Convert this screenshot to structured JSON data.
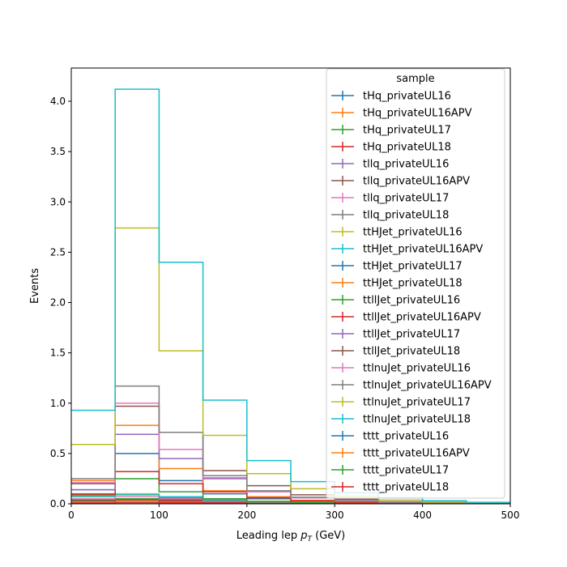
{
  "chart_data": {
    "type": "step histogram",
    "xlabel_main": "Leading lep ",
    "xlabel_var": "p",
    "xlabel_sub": "T",
    "xlabel_unit": " (GeV)",
    "ylabel": "Events",
    "xlim": [
      0,
      500
    ],
    "ylim": [
      0,
      4.33
    ],
    "xticks": [
      0,
      100,
      200,
      300,
      400,
      500
    ],
    "yticks": [
      0.0,
      0.5,
      1.0,
      1.5,
      2.0,
      2.5,
      3.0,
      3.5,
      4.0
    ],
    "bin_edges": [
      0,
      50,
      100,
      150,
      200,
      250,
      300,
      350,
      400,
      450,
      500
    ],
    "legend": {
      "title": "sample",
      "placement": "upper right"
    },
    "series": [
      {
        "name": "tHq_privateUL16",
        "color": "#1f77b4",
        "values": [
          0.02,
          0.03,
          0.02,
          0.01,
          0.005,
          0.003,
          0.002,
          0.001,
          0.001,
          0.0
        ]
      },
      {
        "name": "tHq_privateUL16APV",
        "color": "#ff7f0e",
        "values": [
          0.02,
          0.03,
          0.02,
          0.01,
          0.005,
          0.003,
          0.002,
          0.001,
          0.001,
          0.0
        ]
      },
      {
        "name": "tHq_privateUL17",
        "color": "#2ca02c",
        "values": [
          0.04,
          0.05,
          0.03,
          0.015,
          0.008,
          0.004,
          0.002,
          0.001,
          0.001,
          0.0
        ]
      },
      {
        "name": "tHq_privateUL18",
        "color": "#d62728",
        "values": [
          0.05,
          0.07,
          0.04,
          0.02,
          0.01,
          0.005,
          0.003,
          0.001,
          0.001,
          0.0
        ]
      },
      {
        "name": "tllq_privateUL16",
        "color": "#9467bd",
        "values": [
          0.03,
          0.04,
          0.03,
          0.015,
          0.008,
          0.004,
          0.002,
          0.001,
          0.001,
          0.0
        ]
      },
      {
        "name": "tllq_privateUL16APV",
        "color": "#8c564b",
        "values": [
          0.03,
          0.04,
          0.03,
          0.015,
          0.008,
          0.004,
          0.002,
          0.001,
          0.001,
          0.0
        ]
      },
      {
        "name": "tllq_privateUL17",
        "color": "#e377c2",
        "values": [
          0.05,
          0.07,
          0.05,
          0.025,
          0.012,
          0.006,
          0.003,
          0.002,
          0.001,
          0.0
        ]
      },
      {
        "name": "tllq_privateUL18",
        "color": "#7f7f7f",
        "values": [
          0.07,
          0.09,
          0.06,
          0.03,
          0.015,
          0.008,
          0.004,
          0.002,
          0.001,
          0.0
        ]
      },
      {
        "name": "ttHJet_privateUL16",
        "color": "#bcbd22",
        "values": [
          0.08,
          0.1,
          0.07,
          0.04,
          0.02,
          0.01,
          0.005,
          0.002,
          0.001,
          0.0
        ]
      },
      {
        "name": "ttHJet_privateUL16APV",
        "color": "#17becf",
        "values": [
          0.07,
          0.09,
          0.07,
          0.04,
          0.02,
          0.01,
          0.005,
          0.002,
          0.001,
          0.0
        ]
      },
      {
        "name": "ttHJet_privateUL17",
        "color": "#1f77b4",
        "values": [
          0.14,
          0.5,
          0.23,
          0.1,
          0.05,
          0.025,
          0.012,
          0.006,
          0.003,
          0.001
        ]
      },
      {
        "name": "ttHJet_privateUL18",
        "color": "#ff7f0e",
        "values": [
          0.23,
          0.78,
          0.35,
          0.13,
          0.07,
          0.035,
          0.017,
          0.008,
          0.004,
          0.002
        ]
      },
      {
        "name": "ttllJet_privateUL16",
        "color": "#2ca02c",
        "values": [
          0.1,
          0.25,
          0.12,
          0.05,
          0.025,
          0.012,
          0.006,
          0.003,
          0.001,
          0.001
        ]
      },
      {
        "name": "ttllJet_privateUL16APV",
        "color": "#d62728",
        "values": [
          0.09,
          0.32,
          0.2,
          0.12,
          0.06,
          0.03,
          0.015,
          0.007,
          0.003,
          0.001
        ]
      },
      {
        "name": "ttllJet_privateUL17",
        "color": "#9467bd",
        "values": [
          0.14,
          0.69,
          0.45,
          0.25,
          0.12,
          0.06,
          0.03,
          0.015,
          0.007,
          0.003
        ]
      },
      {
        "name": "ttllJet_privateUL18",
        "color": "#8c564b",
        "values": [
          0.2,
          0.97,
          0.71,
          0.33,
          0.18,
          0.09,
          0.045,
          0.02,
          0.01,
          0.005
        ]
      },
      {
        "name": "ttlnuJet_privateUL16",
        "color": "#e377c2",
        "values": [
          0.21,
          1.0,
          0.54,
          0.26,
          0.12,
          0.06,
          0.03,
          0.015,
          0.007,
          0.003
        ]
      },
      {
        "name": "ttlnuJet_privateUL16APV",
        "color": "#7f7f7f",
        "values": [
          0.25,
          1.17,
          0.71,
          0.28,
          0.13,
          0.065,
          0.032,
          0.016,
          0.008,
          0.004
        ]
      },
      {
        "name": "ttlnuJet_privateUL17",
        "color": "#bcbd22",
        "values": [
          0.59,
          2.74,
          1.52,
          0.68,
          0.3,
          0.15,
          0.075,
          0.037,
          0.018,
          0.009
        ]
      },
      {
        "name": "ttlnuJet_privateUL18",
        "color": "#17becf",
        "values": [
          0.93,
          4.12,
          2.4,
          1.03,
          0.43,
          0.22,
          0.11,
          0.06,
          0.03,
          0.015
        ]
      },
      {
        "name": "tttt_privateUL16",
        "color": "#1f77b4",
        "values": [
          0.005,
          0.01,
          0.008,
          0.005,
          0.003,
          0.002,
          0.001,
          0.001,
          0.0,
          0.0
        ]
      },
      {
        "name": "tttt_privateUL16APV",
        "color": "#ff7f0e",
        "values": [
          0.005,
          0.01,
          0.008,
          0.005,
          0.003,
          0.002,
          0.001,
          0.001,
          0.0,
          0.0
        ]
      },
      {
        "name": "tttt_privateUL17",
        "color": "#2ca02c",
        "values": [
          0.006,
          0.012,
          0.01,
          0.006,
          0.004,
          0.002,
          0.001,
          0.001,
          0.0,
          0.0
        ]
      },
      {
        "name": "tttt_privateUL18",
        "color": "#d62728",
        "values": [
          0.008,
          0.015,
          0.012,
          0.008,
          0.005,
          0.003,
          0.002,
          0.001,
          0.0,
          0.0
        ]
      }
    ]
  }
}
